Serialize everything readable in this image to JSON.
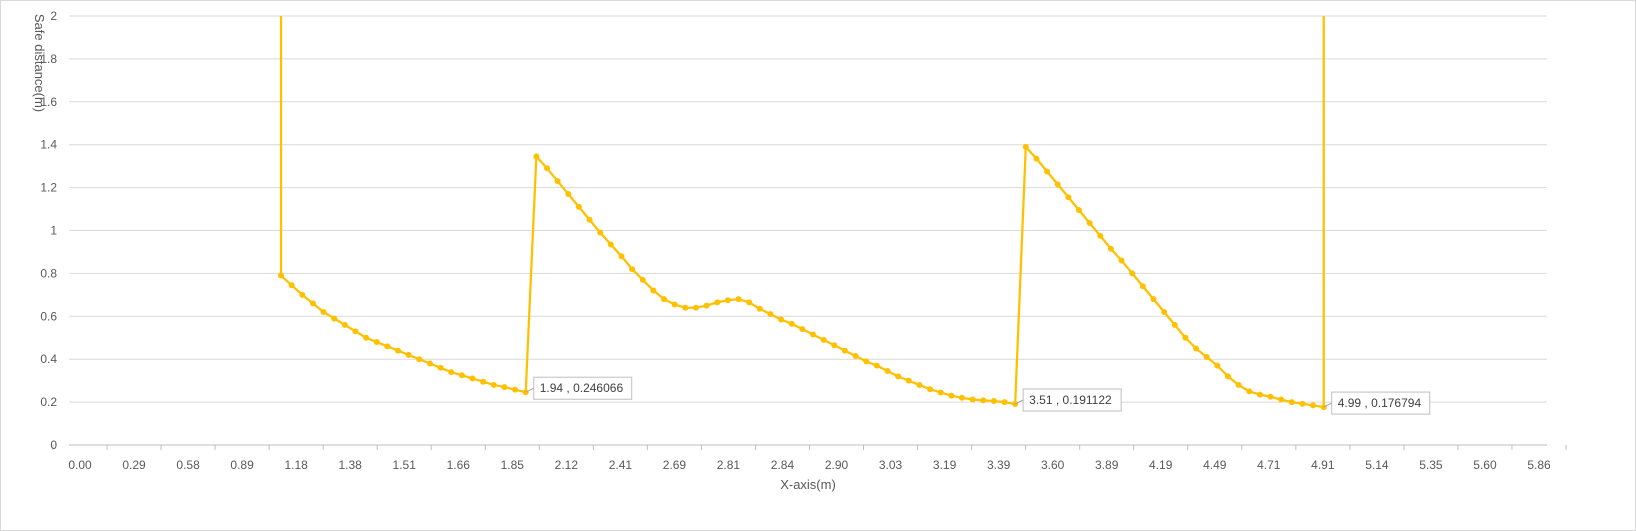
{
  "chart_data": {
    "type": "line",
    "title": "",
    "xlabel": "X-axis(m)",
    "ylabel": "Safe distance(m)",
    "ylim": [
      0,
      2
    ],
    "y_ticks": [
      "0",
      "0.2",
      "0.4",
      "0.6",
      "0.8",
      "1",
      "1.2",
      "1.4",
      "1.6",
      "1.8",
      "2"
    ],
    "x_tick_labels": [
      "0.00",
      "0.29",
      "0.58",
      "0.89",
      "1.18",
      "1.38",
      "1.51",
      "1.66",
      "1.85",
      "2.12",
      "2.41",
      "2.69",
      "2.81",
      "2.84",
      "2.90",
      "3.03",
      "3.19",
      "3.39",
      "3.60",
      "3.89",
      "4.19",
      "4.49",
      "4.71",
      "4.91",
      "5.14",
      "5.35",
      "5.60",
      "5.86"
    ],
    "x_axis_kind": "category",
    "category_count": 135,
    "grid": true,
    "legend": "none",
    "color": "#FFC000",
    "series": [
      {
        "points": [
          [
            0,
            2.0
          ],
          [
            0,
            0.79
          ],
          [
            1,
            0.745
          ],
          [
            2,
            0.7
          ],
          [
            3,
            0.66
          ],
          [
            4,
            0.62
          ],
          [
            5,
            0.59
          ],
          [
            6,
            0.56
          ],
          [
            7,
            0.53
          ],
          [
            8,
            0.5
          ],
          [
            9,
            0.48
          ],
          [
            10,
            0.46
          ],
          [
            11,
            0.44
          ],
          [
            12,
            0.42
          ],
          [
            13,
            0.4
          ],
          [
            14,
            0.38
          ],
          [
            15,
            0.36
          ],
          [
            16,
            0.34
          ],
          [
            17,
            0.325
          ],
          [
            18,
            0.31
          ],
          [
            19,
            0.295
          ],
          [
            20,
            0.28
          ],
          [
            21,
            0.27
          ],
          [
            22,
            0.258
          ],
          [
            23,
            0.246066
          ],
          [
            24,
            1.345
          ],
          [
            25,
            1.29
          ],
          [
            26,
            1.23
          ],
          [
            27,
            1.17
          ],
          [
            28,
            1.11
          ],
          [
            29,
            1.05
          ],
          [
            30,
            0.99
          ],
          [
            31,
            0.935
          ],
          [
            32,
            0.88
          ],
          [
            33,
            0.82
          ],
          [
            34,
            0.77
          ],
          [
            35,
            0.72
          ],
          [
            36,
            0.68
          ],
          [
            37,
            0.655
          ],
          [
            38,
            0.64
          ],
          [
            39,
            0.64
          ],
          [
            40,
            0.65
          ],
          [
            41,
            0.665
          ],
          [
            42,
            0.675
          ],
          [
            43,
            0.68
          ],
          [
            44,
            0.665
          ],
          [
            45,
            0.635
          ],
          [
            46,
            0.61
          ],
          [
            47,
            0.585
          ],
          [
            48,
            0.565
          ],
          [
            49,
            0.54
          ],
          [
            50,
            0.515
          ],
          [
            51,
            0.49
          ],
          [
            52,
            0.465
          ],
          [
            53,
            0.44
          ],
          [
            54,
            0.415
          ],
          [
            55,
            0.39
          ],
          [
            56,
            0.37
          ],
          [
            57,
            0.345
          ],
          [
            58,
            0.32
          ],
          [
            59,
            0.3
          ],
          [
            60,
            0.28
          ],
          [
            61,
            0.26
          ],
          [
            62,
            0.245
          ],
          [
            63,
            0.23
          ],
          [
            64,
            0.22
          ],
          [
            65,
            0.212
          ],
          [
            66,
            0.208
          ],
          [
            67,
            0.205
          ],
          [
            68,
            0.2
          ],
          [
            69,
            0.191122
          ],
          [
            70,
            1.39
          ],
          [
            71,
            1.335
          ],
          [
            72,
            1.275
          ],
          [
            73,
            1.215
          ],
          [
            74,
            1.155
          ],
          [
            75,
            1.095
          ],
          [
            76,
            1.035
          ],
          [
            77,
            0.975
          ],
          [
            78,
            0.915
          ],
          [
            79,
            0.86
          ],
          [
            80,
            0.8
          ],
          [
            81,
            0.74
          ],
          [
            82,
            0.68
          ],
          [
            83,
            0.62
          ],
          [
            84,
            0.56
          ],
          [
            85,
            0.5
          ],
          [
            86,
            0.45
          ],
          [
            87,
            0.41
          ],
          [
            88,
            0.37
          ],
          [
            89,
            0.32
          ],
          [
            90,
            0.28
          ],
          [
            91,
            0.25
          ],
          [
            92,
            0.235
          ],
          [
            93,
            0.225
          ],
          [
            94,
            0.212
          ],
          [
            95,
            0.2
          ],
          [
            96,
            0.192
          ],
          [
            97,
            0.185
          ],
          [
            98,
            0.176794
          ],
          [
            98,
            2.0
          ]
        ]
      }
    ],
    "data_labels": [
      {
        "index": 23,
        "value": 0.246066,
        "text": "1.94 , 0.246066"
      },
      {
        "index": 69,
        "value": 0.191122,
        "text": "3.51 , 0.191122"
      },
      {
        "index": 98,
        "value": 0.176794,
        "text": "4.99 , 0.176794"
      }
    ]
  }
}
